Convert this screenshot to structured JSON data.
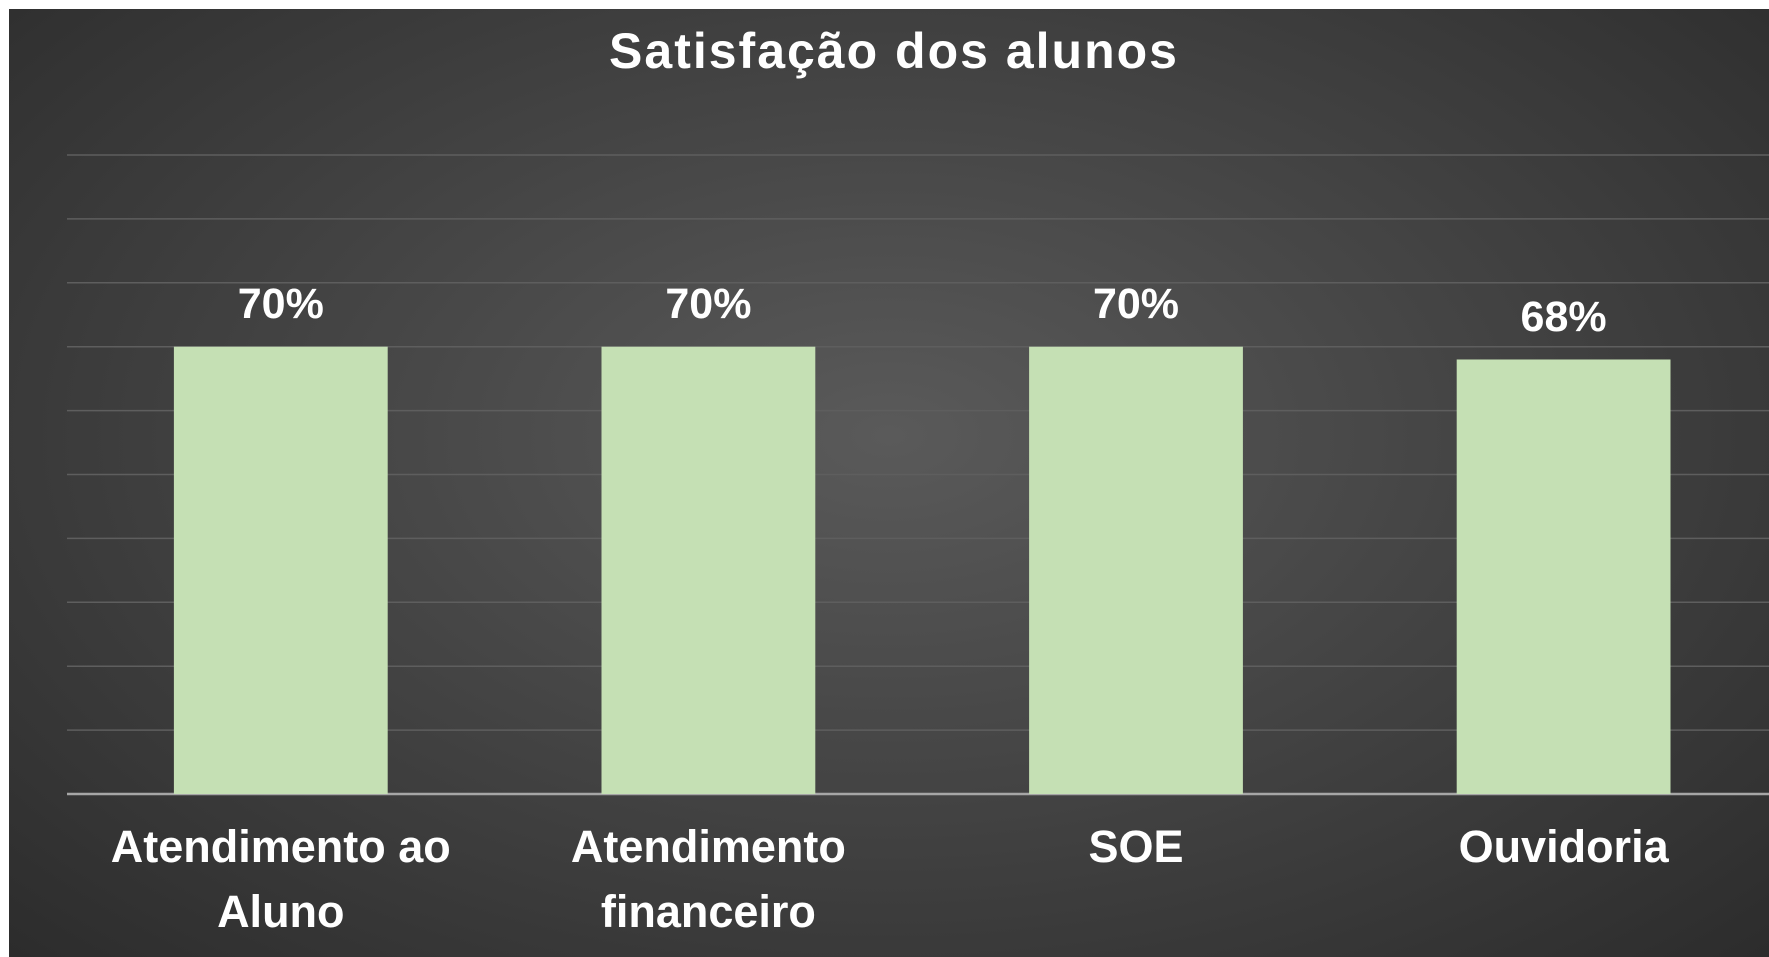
{
  "chart_data": {
    "type": "bar",
    "title": "Satisfação dos alunos",
    "categories": [
      "Atendimento ao Aluno",
      "Atendimento financeiro",
      "SOE",
      "Ouvidoria"
    ],
    "values": [
      70,
      70,
      70,
      68
    ],
    "value_labels": [
      "70%",
      "70%",
      "70%",
      "68%"
    ],
    "color": "#c5e0b4",
    "ylim": [
      0,
      100
    ],
    "yticks": [
      0,
      10,
      20,
      30,
      40,
      50,
      60,
      70,
      80,
      90,
      100
    ],
    "grid": true
  }
}
